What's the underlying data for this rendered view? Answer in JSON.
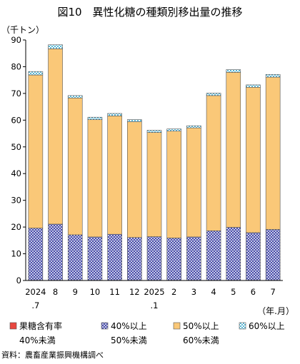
{
  "chart_data": {
    "type": "bar",
    "stacked": true,
    "title": "図10　異性化糖の種類別移出量の推移",
    "ylabel": "（千トン）",
    "xlabel": "（年.月）",
    "ylim": [
      0,
      90
    ],
    "yticks": [
      "0",
      "10",
      "20",
      "30",
      "40",
      "50",
      "60",
      "70",
      "80",
      "90"
    ],
    "grid": false,
    "legend_position": "bottom",
    "categories": [
      {
        "line1": "2024",
        "line2": ".7"
      },
      {
        "line1": "8",
        "line2": ""
      },
      {
        "line1": "9",
        "line2": ""
      },
      {
        "line1": "10",
        "line2": ""
      },
      {
        "line1": "11",
        "line2": ""
      },
      {
        "line1": "12",
        "line2": ""
      },
      {
        "line1": "2025",
        "line2": ".1"
      },
      {
        "line1": "2",
        "line2": ""
      },
      {
        "line1": "3",
        "line2": ""
      },
      {
        "line1": "4",
        "line2": ""
      },
      {
        "line1": "5",
        "line2": ""
      },
      {
        "line1": "6",
        "line2": ""
      },
      {
        "line1": "7",
        "line2": ""
      }
    ],
    "series": [
      {
        "name": "果糖含有率",
        "name_line2": "40%未満",
        "color": "#e8473f",
        "pattern": "solid",
        "values": [
          0.1,
          0.1,
          0.1,
          0.1,
          0.1,
          0.1,
          0.1,
          0.1,
          0.1,
          0.1,
          0.1,
          0.1,
          0.1
        ]
      },
      {
        "name": "40%以上",
        "name_line2": "50%未満",
        "color": "#4a4fb0",
        "pattern": "crosshatch",
        "values": [
          19.5,
          21.0,
          17.0,
          16.2,
          17.2,
          16.0,
          16.3,
          15.8,
          16.2,
          18.5,
          19.8,
          17.8,
          19.0
        ]
      },
      {
        "name": "50%以上",
        "name_line2": "60%未満",
        "color": "#fac878",
        "pattern": "solid",
        "values": [
          57.3,
          65.6,
          51.2,
          43.9,
          44.3,
          43.3,
          39.0,
          40.0,
          40.8,
          50.6,
          58.0,
          54.4,
          57.0
        ]
      },
      {
        "name": "60%以上",
        "name_line2": "",
        "color": "#5bb8d6",
        "pattern": "checker",
        "values": [
          1.3,
          1.5,
          0.9,
          0.9,
          0.9,
          0.8,
          0.8,
          0.8,
          0.8,
          0.9,
          1.0,
          0.9,
          1.0
        ]
      }
    ]
  },
  "source": "資料：農畜産業振興機構調べ"
}
